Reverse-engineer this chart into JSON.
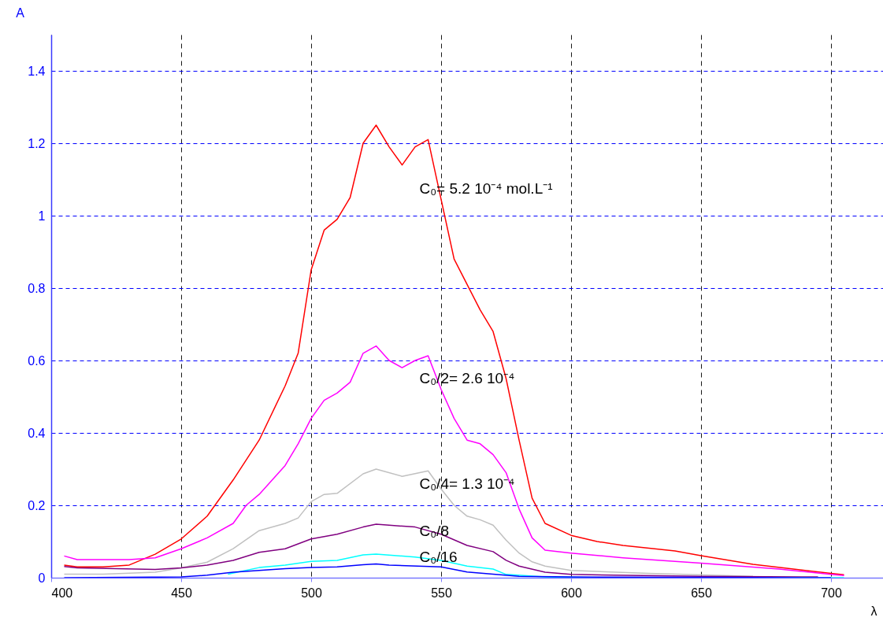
{
  "chart_data": {
    "type": "line",
    "xlabel": "λ",
    "ylabel": "A",
    "xlim": [
      400,
      720
    ],
    "ylim": [
      0,
      1.5
    ],
    "xticks": [
      400,
      450,
      500,
      550,
      600,
      650,
      700
    ],
    "yticks": [
      0,
      0.2,
      0.4,
      0.6,
      0.8,
      1,
      1.2,
      1.4
    ],
    "grid": true,
    "legend": false,
    "marker": "none",
    "line_style": "solid",
    "series": [
      {
        "name": "C₀= 5.2 10⁻⁴  mol.L⁻¹",
        "color": "#ff0000",
        "x": [
          405,
          410,
          420,
          430,
          440,
          450,
          460,
          470,
          480,
          490,
          495,
          500,
          505,
          510,
          515,
          520,
          525,
          530,
          535,
          540,
          545,
          550,
          555,
          560,
          565,
          570,
          575,
          580,
          585,
          590,
          600,
          610,
          620,
          640,
          650,
          670,
          690,
          700,
          705
        ],
        "values": [
          0.035,
          0.03,
          0.03,
          0.035,
          0.065,
          0.107,
          0.17,
          0.27,
          0.38,
          0.53,
          0.62,
          0.85,
          0.96,
          0.99,
          1.05,
          1.2,
          1.25,
          1.19,
          1.14,
          1.19,
          1.21,
          1.045,
          0.88,
          0.81,
          0.74,
          0.68,
          0.55,
          0.38,
          0.22,
          0.15,
          0.117,
          0.1,
          0.089,
          0.074,
          0.061,
          0.037,
          0.02,
          0.012,
          0.008
        ]
      },
      {
        "name": "C₀/2= 2.6 10⁻⁴",
        "color": "#ff00ff",
        "x": [
          405,
          410,
          430,
          440,
          450,
          460,
          470,
          475,
          480,
          490,
          495,
          500,
          505,
          510,
          515,
          520,
          525,
          530,
          535,
          540,
          545,
          550,
          555,
          560,
          565,
          570,
          575,
          580,
          585,
          590,
          600,
          620,
          650,
          680,
          700,
          705
        ],
        "values": [
          0.06,
          0.05,
          0.05,
          0.055,
          0.08,
          0.11,
          0.15,
          0.2,
          0.23,
          0.31,
          0.37,
          0.44,
          0.49,
          0.51,
          0.54,
          0.62,
          0.64,
          0.6,
          0.58,
          0.6,
          0.613,
          0.52,
          0.44,
          0.38,
          0.37,
          0.34,
          0.29,
          0.19,
          0.11,
          0.076,
          0.068,
          0.055,
          0.04,
          0.024,
          0.009,
          0.006
        ]
      },
      {
        "name": "C₀/4= 1.3 10⁻⁴",
        "color": "#c0c0c0",
        "x": [
          405,
          420,
          440,
          450,
          460,
          470,
          480,
          490,
          495,
          500,
          505,
          510,
          520,
          525,
          535,
          545,
          550,
          555,
          560,
          565,
          570,
          575,
          580,
          585,
          590,
          600,
          630,
          670
        ],
        "values": [
          0.01,
          0.01,
          0.015,
          0.027,
          0.043,
          0.08,
          0.13,
          0.15,
          0.165,
          0.21,
          0.23,
          0.233,
          0.287,
          0.3,
          0.28,
          0.295,
          0.245,
          0.2,
          0.17,
          0.16,
          0.145,
          0.104,
          0.068,
          0.044,
          0.032,
          0.02,
          0.012,
          0.004
        ]
      },
      {
        "name": "C₀/8",
        "color": "#800080",
        "x": [
          405,
          410,
          440,
          450,
          460,
          470,
          480,
          490,
          500,
          510,
          520,
          525,
          530,
          540,
          550,
          560,
          570,
          575,
          580,
          590,
          600,
          650,
          695
        ],
        "values": [
          0.031,
          0.027,
          0.023,
          0.027,
          0.035,
          0.048,
          0.07,
          0.08,
          0.107,
          0.12,
          0.14,
          0.148,
          0.145,
          0.14,
          0.12,
          0.089,
          0.072,
          0.048,
          0.032,
          0.015,
          0.009,
          0.004,
          0.002
        ]
      },
      {
        "name": "C₀/16",
        "color": "#00ffff",
        "x": [
          468,
          480,
          490,
          500,
          510,
          520,
          525,
          540,
          550,
          560,
          570,
          575,
          590,
          610,
          650,
          705
        ],
        "values": [
          0.01,
          0.028,
          0.035,
          0.045,
          0.048,
          0.063,
          0.065,
          0.057,
          0.048,
          0.032,
          0.024,
          0.009,
          0.002,
          0,
          0,
          0
        ]
      },
      {
        "color": "#0000ff",
        "x": [
          405,
          450,
          460,
          470,
          480,
          490,
          500,
          510,
          520,
          525,
          530,
          550,
          560,
          570,
          580,
          600,
          650,
          700
        ],
        "values": [
          0,
          0.002,
          0.007,
          0.015,
          0.02,
          0.025,
          0.028,
          0.03,
          0.036,
          0.038,
          0.035,
          0.03,
          0.016,
          0.01,
          0.004,
          0.002,
          0.001,
          0
        ]
      }
    ]
  }
}
